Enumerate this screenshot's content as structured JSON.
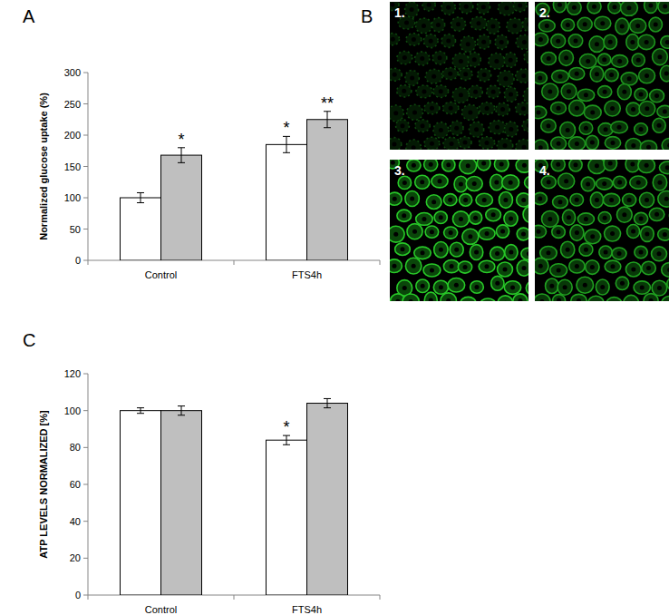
{
  "chart_data": [
    {
      "type": "bar",
      "annotations": [
        "A"
      ],
      "y_label": "Normalized glucose uptake (%)",
      "categories": [
        "Control",
        "FTS4h"
      ],
      "series": [
        {
          "color": "#ffffff",
          "values": [
            100,
            185
          ],
          "errors": [
            8,
            13
          ],
          "significance": [
            null,
            "*"
          ]
        },
        {
          "color": "#bfbfbf",
          "values": [
            168,
            225
          ],
          "errors": [
            12,
            13
          ],
          "significance": [
            "*",
            "**"
          ]
        }
      ],
      "ylim": [
        0,
        300
      ],
      "yticks": [
        0,
        50,
        100,
        150,
        200,
        250,
        300
      ],
      "grid": false
    },
    {
      "type": "bar",
      "annotations": [
        "C"
      ],
      "y_label": "ATP LEVELS NORMALIZED [%]",
      "categories": [
        "Control",
        "FTS4h"
      ],
      "series": [
        {
          "color": "#ffffff",
          "values": [
            100,
            84
          ],
          "errors": [
            1.5,
            2.5
          ],
          "significance": [
            null,
            "*"
          ]
        },
        {
          "color": "#bfbfbf",
          "values": [
            100,
            104
          ],
          "errors": [
            2.5,
            2.5
          ],
          "significance": [
            null,
            null
          ]
        }
      ],
      "ylim": [
        0,
        120
      ],
      "yticks": [
        0,
        20,
        40,
        60,
        80,
        100,
        120
      ],
      "grid": false
    }
  ],
  "images": {
    "label": "B",
    "panels": [
      "1.",
      "2.",
      "3.",
      "4."
    ]
  }
}
